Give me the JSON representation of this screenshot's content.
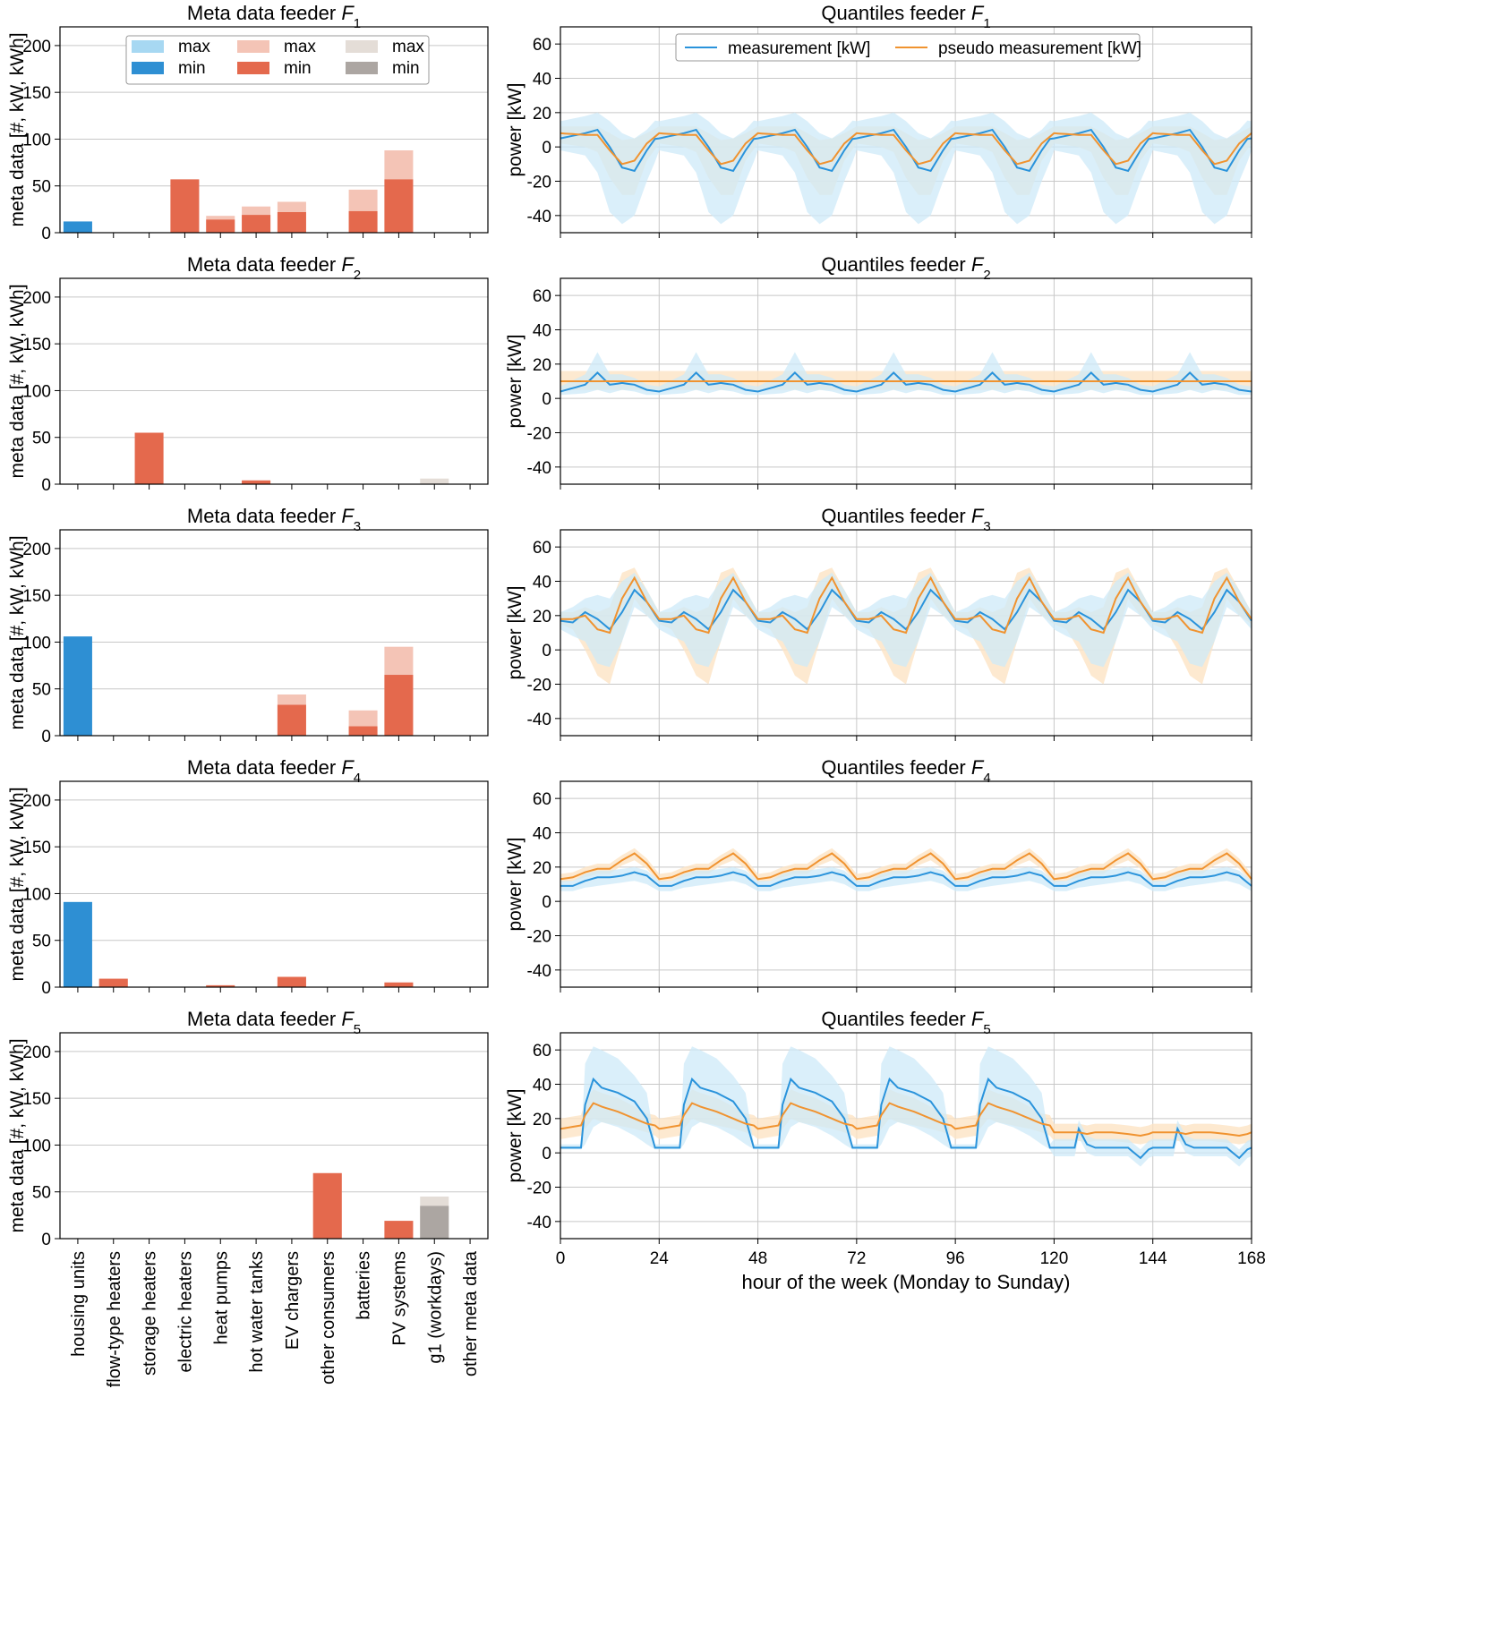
{
  "figure": {
    "bar_title_prefix": "Meta data feeder ",
    "line_title_prefix": "Quantiles feeder ",
    "feeder_symbol": "F",
    "bar_ylabel": "meta data [#, kW, kWh]",
    "line_ylabel": "power [kW]",
    "line_xlabel": "hour of the week (Monday to Sunday)",
    "colors": {
      "blue": "#2e8fd3",
      "blue_light": "#a7d8f2",
      "red": "#e4694d",
      "red_light": "#f4c4b6",
      "grey": "#aca6a2",
      "grey_light": "#e4ddd7",
      "measurement": "#2a93db",
      "measurement_band": "#cde9f8",
      "pseudo": "#f09330",
      "pseudo_band": "#fde3c4",
      "grid": "#c8c8c8"
    }
  },
  "bar_legend": [
    {
      "label": "max",
      "color": "#a7d8f2"
    },
    {
      "label": "max",
      "color": "#f4c4b6"
    },
    {
      "label": "max",
      "color": "#e4ddd7"
    },
    {
      "label": "min",
      "color": "#2e8fd3"
    },
    {
      "label": "min",
      "color": "#e4694d"
    },
    {
      "label": "min",
      "color": "#aca6a2"
    }
  ],
  "line_legend": [
    {
      "label": "measurement [kW]",
      "color": "#2a93db"
    },
    {
      "label": "pseudo measurement [kW]",
      "color": "#f09330"
    }
  ],
  "chart_data": [
    {
      "type": "bar",
      "title": "Meta data feeder F1",
      "ylabel": "meta data [#, kW, kWh]",
      "ylim": [
        0,
        220
      ],
      "yticks": [
        0,
        50,
        100,
        150,
        200
      ],
      "categories": [
        "housing units",
        "flow-type heaters",
        "storage heaters",
        "electric heaters",
        "heat pumps",
        "hot water tanks",
        "EV chargers",
        "other consumers",
        "batteries",
        "PV systems",
        "g1 (workdays)",
        "other meta data"
      ],
      "series": [
        {
          "name": "min",
          "values": [
            12,
            0,
            0,
            57,
            14,
            19,
            22,
            0,
            23,
            57,
            0,
            0
          ]
        },
        {
          "name": "max",
          "values": [
            12,
            0,
            0,
            57,
            18,
            28,
            33,
            0,
            46,
            88,
            0,
            0
          ]
        }
      ]
    },
    {
      "type": "bar",
      "title": "Meta data feeder F2",
      "ylabel": "meta data [#, kW, kWh]",
      "ylim": [
        0,
        220
      ],
      "yticks": [
        0,
        50,
        100,
        150,
        200
      ],
      "categories": [
        "housing units",
        "flow-type heaters",
        "storage heaters",
        "electric heaters",
        "heat pumps",
        "hot water tanks",
        "EV chargers",
        "other consumers",
        "batteries",
        "PV systems",
        "g1 (workdays)",
        "other meta data"
      ],
      "series": [
        {
          "name": "min",
          "values": [
            0,
            0,
            55,
            0,
            0,
            4,
            0,
            0,
            0,
            0,
            0,
            0
          ]
        },
        {
          "name": "max",
          "values": [
            0,
            0,
            55,
            0,
            0,
            4,
            0,
            0,
            0,
            0,
            6,
            0
          ]
        }
      ]
    },
    {
      "type": "bar",
      "title": "Meta data feeder F3",
      "ylabel": "meta data [#, kW, kWh]",
      "ylim": [
        0,
        220
      ],
      "yticks": [
        0,
        50,
        100,
        150,
        200
      ],
      "categories": [
        "housing units",
        "flow-type heaters",
        "storage heaters",
        "electric heaters",
        "heat pumps",
        "hot water tanks",
        "EV chargers",
        "other consumers",
        "batteries",
        "PV systems",
        "g1 (workdays)",
        "other meta data"
      ],
      "series": [
        {
          "name": "min",
          "values": [
            106,
            0,
            0,
            0,
            0,
            0,
            33,
            0,
            10,
            65,
            0,
            0
          ]
        },
        {
          "name": "max",
          "values": [
            106,
            0,
            0,
            0,
            0,
            0,
            44,
            0,
            27,
            95,
            0,
            0
          ]
        }
      ]
    },
    {
      "type": "bar",
      "title": "Meta data feeder F4",
      "ylabel": "meta data [#, kW, kWh]",
      "ylim": [
        0,
        220
      ],
      "yticks": [
        0,
        50,
        100,
        150,
        200
      ],
      "categories": [
        "housing units",
        "flow-type heaters",
        "storage heaters",
        "electric heaters",
        "heat pumps",
        "hot water tanks",
        "EV chargers",
        "other consumers",
        "batteries",
        "PV systems",
        "g1 (workdays)",
        "other meta data"
      ],
      "series": [
        {
          "name": "min",
          "values": [
            91,
            9,
            0,
            0,
            2,
            0,
            11,
            0,
            0,
            5,
            0,
            0
          ]
        },
        {
          "name": "max",
          "values": [
            91,
            9,
            0,
            0,
            2,
            0,
            11,
            0,
            0,
            5,
            0,
            0
          ]
        }
      ]
    },
    {
      "type": "bar",
      "title": "Meta data feeder F5",
      "ylabel": "meta data [#, kW, kWh]",
      "ylim": [
        0,
        220
      ],
      "yticks": [
        0,
        50,
        100,
        150,
        200
      ],
      "categories": [
        "housing units",
        "flow-type heaters",
        "storage heaters",
        "electric heaters",
        "heat pumps",
        "hot water tanks",
        "EV chargers",
        "other consumers",
        "batteries",
        "PV systems",
        "g1 (workdays)",
        "other meta data"
      ],
      "series": [
        {
          "name": "min",
          "values": [
            0,
            0,
            0,
            0,
            0,
            0,
            0,
            70,
            0,
            19,
            35,
            0
          ]
        },
        {
          "name": "max",
          "values": [
            0,
            0,
            0,
            0,
            0,
            0,
            0,
            70,
            0,
            19,
            45,
            0
          ]
        }
      ]
    },
    {
      "type": "line",
      "title": "Quantiles feeder F1",
      "ylabel": "power [kW]",
      "xlim": [
        0,
        168
      ],
      "ylim": [
        -50,
        70
      ],
      "xticks": [
        0,
        24,
        48,
        72,
        96,
        120,
        144,
        168
      ],
      "yticks": [
        -40,
        -20,
        0,
        20,
        40,
        60
      ],
      "x": [
        0,
        6,
        9,
        12,
        15,
        18,
        21,
        24
      ],
      "series": [
        {
          "name": "measurement [kW]",
          "values": [
            5,
            8,
            10,
            0,
            -12,
            -14,
            -2,
            8
          ]
        },
        {
          "name": "pseudo measurement [kW]",
          "values": [
            8,
            7,
            7,
            -2,
            -10,
            -8,
            2,
            8
          ]
        }
      ],
      "bands": [
        {
          "name": "measurement [kW]",
          "lower": [
            -2,
            -5,
            -15,
            -38,
            -45,
            -40,
            -20,
            -3
          ],
          "upper": [
            15,
            18,
            20,
            15,
            8,
            5,
            10,
            18
          ]
        },
        {
          "name": "pseudo measurement [kW]",
          "lower": [
            2,
            0,
            -3,
            -18,
            -28,
            -28,
            -8,
            2
          ],
          "upper": [
            12,
            12,
            12,
            8,
            4,
            5,
            8,
            12
          ]
        }
      ],
      "repeat": "daily pattern repeated over 7 days"
    },
    {
      "type": "line",
      "title": "Quantiles feeder F2",
      "ylabel": "power [kW]",
      "xlim": [
        0,
        168
      ],
      "ylim": [
        -50,
        70
      ],
      "xticks": [
        0,
        24,
        48,
        72,
        96,
        120,
        144,
        168
      ],
      "yticks": [
        -40,
        -20,
        0,
        20,
        40,
        60
      ],
      "x": [
        0,
        6,
        9,
        12,
        15,
        18,
        21,
        24
      ],
      "series": [
        {
          "name": "measurement [kW]",
          "values": [
            4,
            8,
            15,
            8,
            9,
            8,
            5,
            4
          ]
        },
        {
          "name": "pseudo measurement [kW]",
          "values": [
            10,
            10,
            10,
            10,
            10,
            10,
            10,
            10
          ]
        }
      ],
      "bands": [
        {
          "name": "measurement [kW]",
          "lower": [
            2,
            3,
            5,
            3,
            5,
            4,
            2,
            2
          ],
          "upper": [
            7,
            14,
            27,
            14,
            14,
            12,
            8,
            7
          ]
        },
        {
          "name": "pseudo measurement [kW]",
          "lower": [
            5,
            5,
            5,
            5,
            5,
            5,
            5,
            5
          ],
          "upper": [
            16,
            16,
            16,
            16,
            16,
            16,
            16,
            16
          ]
        }
      ],
      "repeat": "daily pattern repeated over 7 days"
    },
    {
      "type": "line",
      "title": "Quantiles feeder F3",
      "ylabel": "power [kW]",
      "xlim": [
        0,
        168
      ],
      "ylim": [
        -50,
        70
      ],
      "xticks": [
        0,
        24,
        48,
        72,
        96,
        120,
        144,
        168
      ],
      "yticks": [
        -40,
        -20,
        0,
        20,
        40,
        60
      ],
      "x": [
        0,
        3,
        6,
        9,
        12,
        15,
        18,
        21,
        24
      ],
      "series": [
        {
          "name": "measurement [kW]",
          "values": [
            17,
            16,
            22,
            18,
            12,
            22,
            35,
            28,
            17
          ]
        },
        {
          "name": "pseudo measurement [kW]",
          "values": [
            18,
            18,
            20,
            12,
            10,
            30,
            42,
            28,
            18
          ]
        }
      ],
      "bands": [
        {
          "name": "measurement [kW]",
          "lower": [
            12,
            8,
            5,
            -8,
            -10,
            5,
            25,
            20,
            12
          ],
          "upper": [
            22,
            25,
            30,
            32,
            30,
            40,
            45,
            35,
            22
          ]
        },
        {
          "name": "pseudo measurement [kW]",
          "lower": [
            15,
            12,
            0,
            -15,
            -20,
            5,
            30,
            20,
            15
          ],
          "upper": [
            22,
            22,
            25,
            22,
            25,
            45,
            48,
            35,
            22
          ]
        }
      ],
      "repeat": "daily pattern repeated over 7 days"
    },
    {
      "type": "line",
      "title": "Quantiles feeder F4",
      "ylabel": "power [kW]",
      "xlim": [
        0,
        168
      ],
      "ylim": [
        -50,
        70
      ],
      "xticks": [
        0,
        24,
        48,
        72,
        96,
        120,
        144,
        168
      ],
      "yticks": [
        -40,
        -20,
        0,
        20,
        40,
        60
      ],
      "x": [
        0,
        3,
        6,
        9,
        12,
        15,
        18,
        21,
        24
      ],
      "series": [
        {
          "name": "measurement [kW]",
          "values": [
            9,
            9,
            12,
            14,
            14,
            15,
            17,
            15,
            9
          ]
        },
        {
          "name": "pseudo measurement [kW]",
          "values": [
            13,
            14,
            17,
            19,
            19,
            24,
            28,
            22,
            13
          ]
        }
      ],
      "bands": [
        {
          "name": "measurement [kW]",
          "lower": [
            6,
            6,
            8,
            9,
            10,
            11,
            12,
            10,
            6
          ],
          "upper": [
            12,
            12,
            16,
            18,
            18,
            19,
            20,
            18,
            12
          ]
        },
        {
          "name": "pseudo measurement [kW]",
          "lower": [
            11,
            12,
            14,
            16,
            16,
            21,
            24,
            19,
            11
          ],
          "upper": [
            16,
            17,
            20,
            22,
            22,
            27,
            31,
            25,
            16
          ]
        }
      ],
      "repeat": "daily pattern repeated over 7 days"
    },
    {
      "type": "line",
      "title": "Quantiles feeder F5",
      "ylabel": "power [kW]",
      "xlabel": "hour of the week (Monday to Sunday)",
      "xlim": [
        0,
        168
      ],
      "ylim": [
        -50,
        70
      ],
      "xticks": [
        0,
        24,
        48,
        72,
        96,
        120,
        144,
        168
      ],
      "yticks": [
        -40,
        -20,
        0,
        20,
        40,
        60
      ],
      "x": [
        0,
        5,
        6,
        8,
        10,
        14,
        18,
        21,
        23,
        24
      ],
      "series": [
        {
          "name": "measurement [kW]",
          "values": [
            3,
            3,
            28,
            43,
            38,
            35,
            30,
            20,
            3,
            3
          ]
        },
        {
          "name": "pseudo measurement [kW]",
          "values": [
            14,
            16,
            22,
            29,
            27,
            24,
            20,
            17,
            16,
            14
          ]
        }
      ],
      "bands": [
        {
          "name": "measurement [kW]",
          "lower": [
            2,
            2,
            5,
            15,
            18,
            15,
            10,
            5,
            2,
            2
          ],
          "upper": [
            5,
            5,
            52,
            62,
            60,
            55,
            45,
            35,
            5,
            5
          ]
        },
        {
          "name": "pseudo measurement [kW]",
          "lower": [
            8,
            10,
            14,
            20,
            18,
            16,
            14,
            12,
            10,
            8
          ],
          "upper": [
            20,
            22,
            30,
            37,
            35,
            32,
            27,
            23,
            22,
            20
          ]
        }
      ],
      "weekend": {
        "measurement": [
          3,
          3,
          14,
          5,
          3,
          3,
          3,
          -3,
          2,
          3
        ],
        "pseudo": [
          12,
          12,
          12,
          11,
          12,
          12,
          11,
          10,
          11,
          12
        ]
      },
      "repeat": "weekday pattern for 5 days, weekend low"
    }
  ]
}
